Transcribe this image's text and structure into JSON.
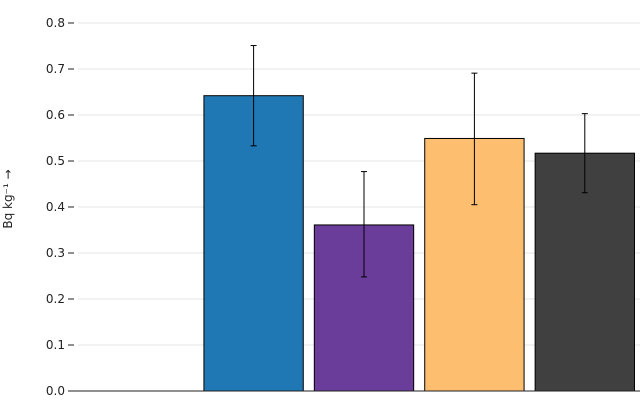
{
  "chart_data": {
    "type": "bar",
    "title": "",
    "xlabel": "",
    "ylabel": "Bq kg⁻¹ →",
    "ylim": [
      0,
      0.8
    ],
    "y_ticks": [
      0,
      0.1,
      0.2,
      0.3,
      0.4,
      0.5,
      0.6,
      0.7,
      0.8
    ],
    "y_tick_labels": [
      "0.0",
      "0.1",
      "0.2",
      "0.3",
      "0.4",
      "0.5",
      "0.6",
      "0.7",
      "0.8"
    ],
    "grid": true,
    "legend": "none",
    "categories": [
      "",
      "",
      "",
      "",
      ""
    ],
    "values": [
      null,
      0.642,
      0.361,
      0.549,
      0.517
    ],
    "error_low": [
      null,
      0.533,
      0.248,
      0.405,
      0.431
    ],
    "error_high": [
      null,
      0.751,
      0.477,
      0.691,
      0.603
    ],
    "colors": [
      "#1f77b4",
      "#1f77b4",
      "#6a3d9a",
      "#fdbf6f",
      "#404040"
    ]
  }
}
